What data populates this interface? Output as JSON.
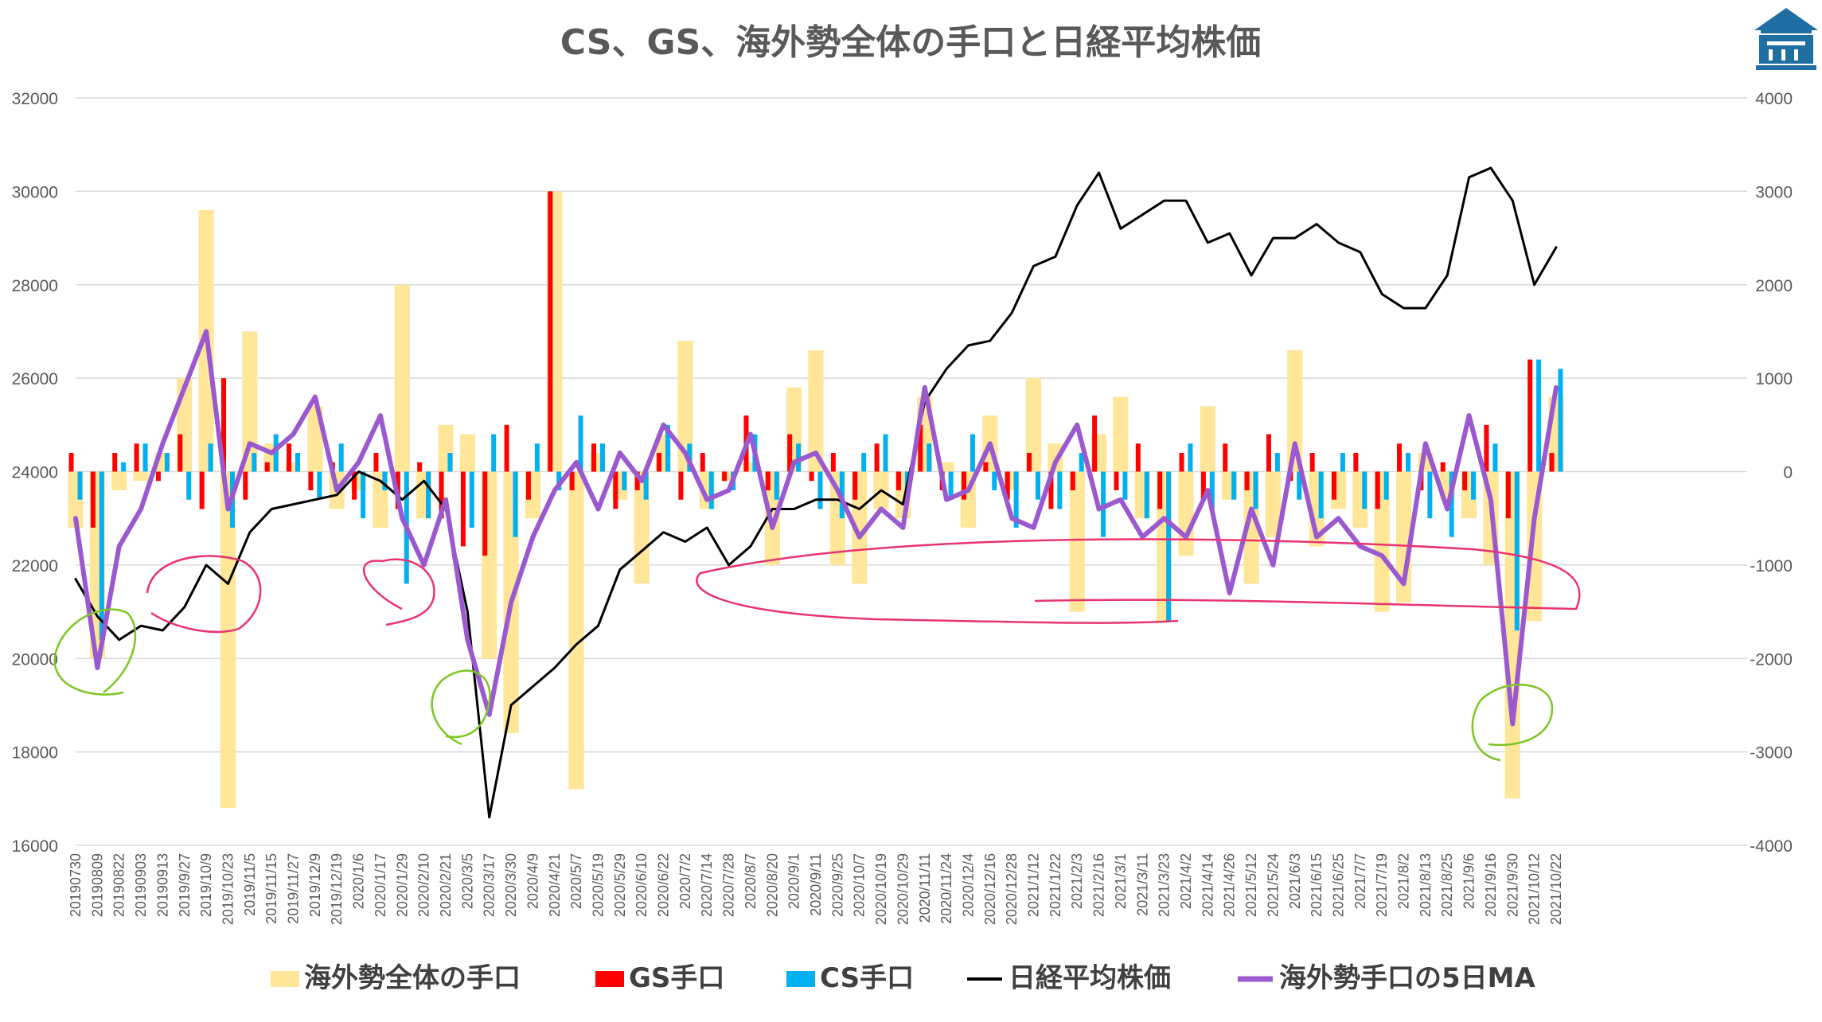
{
  "chart_data": {
    "type": "bar",
    "title": "CS、GS、海外勢全体の手口と日経平均株価",
    "xlabel": "",
    "ylabel": "",
    "ylim": [
      16000,
      32000
    ],
    "y2lim": [
      -4000,
      4000
    ],
    "yticks": [
      "32000",
      "30000",
      "28000",
      "26000",
      "24000",
      "22000",
      "20000",
      "18000",
      "16000"
    ],
    "y2ticks": [
      "4000",
      "3000",
      "2000",
      "1000",
      "0",
      "-1000",
      "-2000",
      "-3000",
      "-4000"
    ],
    "grid": true,
    "legend_position": "bottom",
    "x_tick_labels": [
      "20190730",
      "20190809",
      "20190822",
      "20190903",
      "20190913",
      "2019/9/27",
      "2019/10/9",
      "2019/10/23",
      "2019/11/5",
      "2019/11/15",
      "2019/11/27",
      "2019/12/9",
      "2019/12/19",
      "2020/1/6",
      "2020/1/17",
      "2020/1/29",
      "2020/2/10",
      "2020/2/21",
      "2020/3/5",
      "2020/3/17",
      "2020/3/30",
      "2020/4/9",
      "2020/4/21",
      "2020/5/7",
      "2020/5/19",
      "2020/5/29",
      "2020/6/10",
      "2020/6/22",
      "2020/7/2",
      "2020/7/14",
      "2020/7/28",
      "2020/8/7",
      "2020/8/20",
      "2020/9/1",
      "2020/9/11",
      "2020/9/25",
      "2020/10/7",
      "2020/10/19",
      "2020/10/29",
      "2020/11/11",
      "2020/11/24",
      "2020/12/4",
      "2020/12/16",
      "2020/12/28",
      "2021/1/12",
      "2021/1/22",
      "2021/2/3",
      "2021/2/16",
      "2021/3/1",
      "2021/3/11",
      "2021/3/23",
      "2021/4/2",
      "2021/4/14",
      "2021/4/26",
      "2021/5/12",
      "2021/5/24",
      "2021/6/3",
      "2021/6/15",
      "2021/6/25",
      "2021/7/7",
      "2021/7/19",
      "2021/8/2",
      "2021/8/13",
      "2021/8/25",
      "2021/9/6",
      "2021/9/16",
      "2021/9/30",
      "2021/10/12",
      "2021/10/22"
    ],
    "series": [
      {
        "name": "海外勢全体の手口",
        "type": "bar",
        "axis": "right",
        "color": "#FFE699",
        "values": [
          -600,
          -2000,
          -200,
          -100,
          200,
          1000,
          2800,
          -3600,
          1500,
          300,
          100,
          700,
          -400,
          -200,
          -600,
          2000,
          -500,
          500,
          400,
          -2000,
          -2800,
          -500,
          3000,
          -3400,
          200,
          -300,
          -1200,
          400,
          1400,
          -400,
          -100,
          100,
          -1000,
          900,
          1300,
          -1000,
          -1200,
          -400,
          -500,
          800,
          100,
          -600,
          600,
          -200,
          1000,
          300,
          -1500,
          400,
          800,
          -500,
          -1600,
          -900,
          700,
          -300,
          -1200,
          -700,
          1300,
          -800,
          -400,
          -600,
          -1500,
          -1400,
          200,
          -300,
          -500,
          -1000,
          -3500,
          -1600,
          800
        ]
      },
      {
        "name": "GS手口",
        "type": "bar",
        "axis": "right",
        "color": "#FF0000",
        "values": [
          200,
          -600,
          200,
          300,
          -100,
          400,
          -400,
          1000,
          -300,
          100,
          300,
          -200,
          100,
          -300,
          200,
          -400,
          100,
          -500,
          -800,
          -900,
          500,
          -300,
          3000,
          -200,
          300,
          -400,
          -200,
          200,
          -300,
          200,
          -100,
          600,
          -200,
          400,
          -100,
          200,
          -300,
          300,
          -200,
          500,
          -200,
          -300,
          100,
          -300,
          200,
          -400,
          -200,
          600,
          -200,
          300,
          -400,
          200,
          -300,
          300,
          -200,
          400,
          -100,
          200,
          -300,
          200,
          -400,
          300,
          -200,
          100,
          -200,
          500,
          -500,
          1200,
          200
        ]
      },
      {
        "name": "CS手口",
        "type": "bar",
        "axis": "right",
        "color": "#00B0F0",
        "values": [
          -300,
          -1800,
          100,
          300,
          200,
          -300,
          300,
          -600,
          200,
          400,
          200,
          -300,
          300,
          -500,
          -200,
          -1200,
          -500,
          200,
          -600,
          400,
          -700,
          300,
          -200,
          600,
          300,
          -200,
          -300,
          500,
          300,
          -400,
          -200,
          400,
          -300,
          300,
          -400,
          -500,
          200,
          400,
          -200,
          300,
          -300,
          400,
          -200,
          -600,
          -300,
          -400,
          200,
          -700,
          -300,
          -500,
          -1600,
          300,
          -400,
          -300,
          -400,
          200,
          -300,
          -500,
          200,
          -400,
          -300,
          200,
          -500,
          -700,
          -300,
          300,
          -1700,
          1200,
          1100
        ]
      },
      {
        "name": "日経平均株価",
        "type": "line",
        "axis": "left",
        "color": "#000000",
        "values": [
          21700,
          20900,
          20400,
          20700,
          20600,
          21100,
          22000,
          21600,
          22700,
          23200,
          23300,
          23400,
          23500,
          24000,
          23800,
          23400,
          23800,
          23200,
          21000,
          16600,
          19000,
          19400,
          19800,
          20300,
          20700,
          21900,
          22300,
          22700,
          22500,
          22800,
          22000,
          22400,
          23200,
          23200,
          23400,
          23400,
          23200,
          23600,
          23300,
          25500,
          26200,
          26700,
          26800,
          27400,
          28400,
          28600,
          29700,
          30400,
          29200,
          29500,
          29800,
          29800,
          28900,
          29100,
          28200,
          29000,
          29000,
          29300,
          28900,
          28700,
          27800,
          27500,
          27500,
          28200,
          30300,
          30500,
          29800,
          28000,
          28800
        ]
      },
      {
        "name": "海外勢手口の5日MA",
        "type": "line",
        "axis": "right",
        "color": "#9B59D0",
        "values": [
          -500,
          -2100,
          -800,
          -400,
          300,
          900,
          1500,
          -400,
          300,
          200,
          400,
          800,
          -200,
          100,
          600,
          -500,
          -1000,
          -300,
          -1800,
          -2600,
          -1400,
          -700,
          -200,
          100,
          -400,
          200,
          -100,
          500,
          200,
          -300,
          -200,
          400,
          -600,
          100,
          200,
          -200,
          -700,
          -400,
          -600,
          900,
          -300,
          -200,
          300,
          -500,
          -600,
          100,
          500,
          -400,
          -300,
          -700,
          -500,
          -700,
          -200,
          -1300,
          -400,
          -1000,
          300,
          -700,
          -500,
          -800,
          -900,
          -1200,
          300,
          -400,
          600,
          -300,
          -2700,
          -500,
          900
        ]
      }
    ]
  },
  "legend": [
    {
      "label": "海外勢全体の手口",
      "color": "#FFE699",
      "kind": "box"
    },
    {
      "label": "GS手口",
      "color": "#FF0000",
      "kind": "box"
    },
    {
      "label": "CS手口",
      "color": "#00B0F0",
      "kind": "box"
    },
    {
      "label": "日経平均株価",
      "color": "#000000",
      "kind": "line"
    },
    {
      "label": "海外勢手口の5日MA",
      "color": "#9B59D0",
      "kind": "line"
    }
  ],
  "annotations_color": {
    "pink": "#E8336E",
    "green": "#7DC623"
  },
  "logo": {
    "name": "building-logo-icon",
    "color": "#1F6FA3"
  }
}
